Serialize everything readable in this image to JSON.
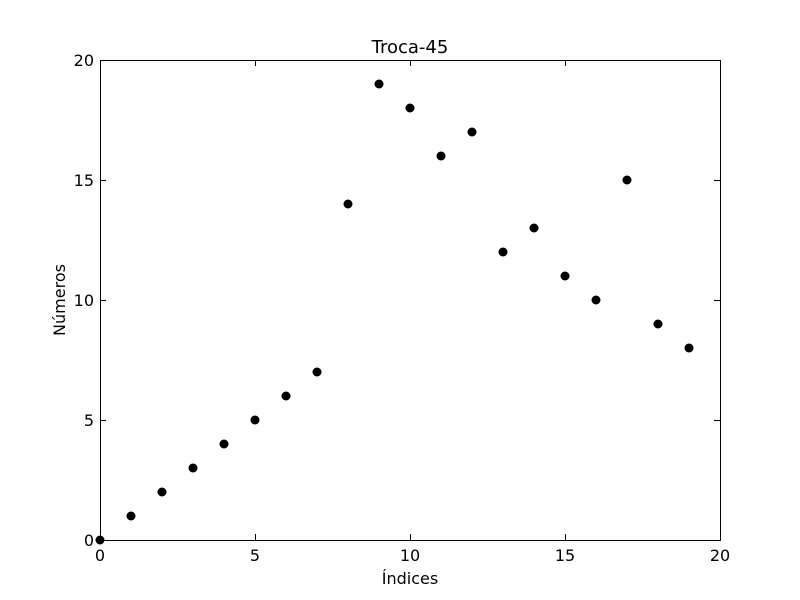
{
  "chart_data": {
    "type": "scatter",
    "title": "Troca-45",
    "xlabel": "Índices",
    "ylabel": "Números",
    "xlim": [
      0,
      20
    ],
    "ylim": [
      0,
      20
    ],
    "xticks": [
      0,
      5,
      10,
      15,
      20
    ],
    "yticks": [
      0,
      5,
      10,
      15,
      20
    ],
    "xtick_labels": [
      "0",
      "5",
      "10",
      "15",
      "20"
    ],
    "ytick_labels": [
      "0",
      "5",
      "10",
      "15",
      "20"
    ],
    "grid": false,
    "series": [
      {
        "name": "points",
        "color": "#000000",
        "marker": "circle",
        "x": [
          0,
          1,
          2,
          3,
          4,
          5,
          6,
          7,
          8,
          9,
          10,
          11,
          12,
          13,
          14,
          15,
          16,
          17,
          18,
          19
        ],
        "y": [
          0,
          1,
          2,
          3,
          4,
          5,
          6,
          7,
          14,
          19,
          18,
          16,
          17,
          12,
          13,
          11,
          10,
          15,
          9,
          8
        ]
      }
    ]
  }
}
